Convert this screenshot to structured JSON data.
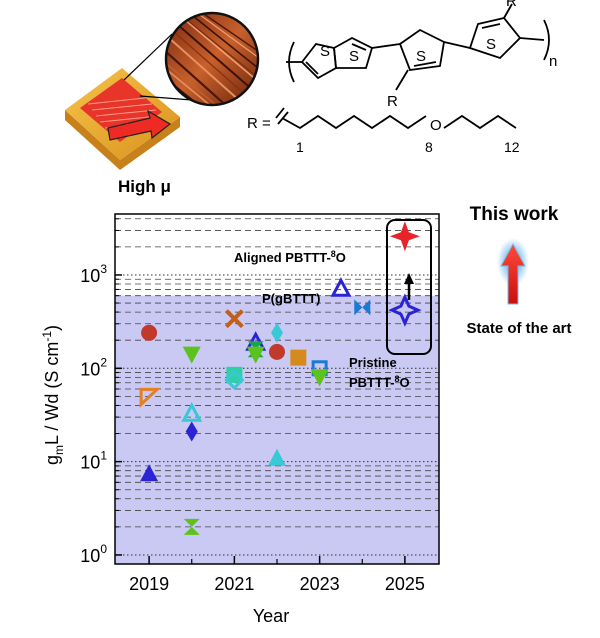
{
  "schematic": {
    "label": "High μ",
    "label_color": "#e8242a"
  },
  "chemical_structure": {
    "ring_atom": "S",
    "substituent": "R",
    "repeat": "n",
    "r_equals": "R =",
    "oxygen": "O",
    "positions": [
      "1",
      "8",
      "12"
    ]
  },
  "chart_data": {
    "type": "scatter",
    "xlabel": "Year",
    "ylabel_parts": {
      "g": "g",
      "m": "m",
      "rest": "L / Wd (S cm",
      "exp": "-1",
      "close": ")"
    },
    "xlim": [
      2018.2,
      2025.8
    ],
    "ylim": [
      0.8,
      4500
    ],
    "y_scale": "log",
    "x_ticks": [
      "2019",
      "2021",
      "2023",
      "2025"
    ],
    "x_tick_values": [
      2019,
      2021,
      2023,
      2025
    ],
    "minor_x_ticks": [
      2020,
      2022,
      2024
    ],
    "y_ticks": [
      {
        "value": 1,
        "base": "10",
        "exp": "0"
      },
      {
        "value": 10,
        "base": "10",
        "exp": "1"
      },
      {
        "value": 100,
        "base": "10",
        "exp": "2"
      },
      {
        "value": 1000,
        "base": "10",
        "exp": "3"
      }
    ],
    "shaded_region_max": 600,
    "shaded_color": "#c9c9f3",
    "points": [
      {
        "x": 2019.0,
        "y": 240,
        "marker": "circle",
        "color": "#c0392b"
      },
      {
        "x": 2019.0,
        "y": 50,
        "marker": "tri-open-left",
        "color": "#e67e22"
      },
      {
        "x": 2019.0,
        "y": 7.5,
        "marker": "tri-up",
        "color": "#2a24d4"
      },
      {
        "x": 2020.0,
        "y": 140,
        "marker": "tri-down",
        "color": "#5cc21e"
      },
      {
        "x": 2020.0,
        "y": 33,
        "marker": "tri-open-up",
        "color": "#37c9d6"
      },
      {
        "x": 2020.0,
        "y": 21,
        "marker": "diamond",
        "color": "#2a24d4"
      },
      {
        "x": 2020.0,
        "y": 2.0,
        "marker": "hourglass",
        "color": "#5cc21e"
      },
      {
        "x": 2021.0,
        "y": 340,
        "marker": "cross",
        "color": "#c0601a"
      },
      {
        "x": 2021.0,
        "y": 85,
        "marker": "square",
        "color": "#2fcfa8"
      },
      {
        "x": 2021.0,
        "y": 75,
        "marker": "diamond-open",
        "color": "#37c9d6"
      },
      {
        "x": 2021.5,
        "y": 190,
        "marker": "tri-open-up",
        "color": "#2a24d4"
      },
      {
        "x": 2021.5,
        "y": 160,
        "marker": "hourglass",
        "color": "#14a84a"
      },
      {
        "x": 2021.5,
        "y": 140,
        "marker": "tri-down",
        "color": "#5cc21e"
      },
      {
        "x": 2022.0,
        "y": 240,
        "marker": "diamond",
        "color": "#37c9d6"
      },
      {
        "x": 2022.0,
        "y": 150,
        "marker": "circle",
        "color": "#c0392b"
      },
      {
        "x": 2022.0,
        "y": 11,
        "marker": "tri-up",
        "color": "#37c9d6"
      },
      {
        "x": 2022.5,
        "y": 130,
        "marker": "square",
        "color": "#d68a1e"
      },
      {
        "x": 2023.0,
        "y": 100,
        "marker": "square-open",
        "color": "#1b7ad3"
      },
      {
        "x": 2023.0,
        "y": 80,
        "marker": "tri-down",
        "color": "#5cc21e"
      },
      {
        "x": 2023.5,
        "y": 720,
        "marker": "tri-open-up",
        "color": "#2a24d4"
      },
      {
        "x": 2024.0,
        "y": 450,
        "marker": "hourglass-h",
        "color": "#1b7ad3"
      },
      {
        "x": 2025.0,
        "y": 420,
        "marker": "star4-open",
        "color": "#2a24d4"
      },
      {
        "x": 2025.0,
        "y": 2600,
        "marker": "star4",
        "color": "#e8242a"
      }
    ],
    "annotations": {
      "aligned": {
        "text": "Aligned PBTTT-",
        "sup": "8",
        "suffix": "O",
        "color": "#e8242a"
      },
      "pgbttt": {
        "text": "P(gBTTT)",
        "color": "#5a1ee0"
      },
      "pristine_line1": {
        "text": "Pristine",
        "color": "#2a24d4"
      },
      "pristine_line2": {
        "text": "PBTTT-",
        "sup": "8",
        "suffix": "O",
        "color": "#2a24d4"
      }
    }
  },
  "side_labels": {
    "this_work": "This work",
    "this_work_color": "#e8242a",
    "state_of_art": "State of the art",
    "state_of_art_color": "#3a2a8a"
  }
}
